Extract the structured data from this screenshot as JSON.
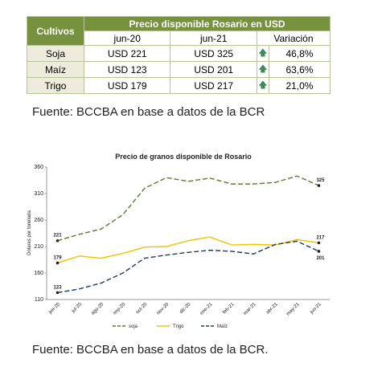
{
  "table": {
    "header": {
      "row_label": "Cultivos",
      "group": "Precio disponible Rosario en USD",
      "columns": [
        "jun-20",
        "jun-21",
        "Variación"
      ]
    },
    "rows": [
      [
        "Soja",
        "USD 221",
        "USD 325",
        "46,8%"
      ],
      [
        "Maíz",
        "USD 123",
        "USD 201",
        "63,6%"
      ],
      [
        "Trigo",
        "USD 179",
        "USD 217",
        "21,0%"
      ]
    ]
  },
  "source_1": "Fuente: BCCBA en base a datos de la BCR",
  "chart_data": {
    "type": "line",
    "title": "Precio de granos disponible de Rosario",
    "y_label": "Dolares por tonelada",
    "categories": [
      "jun-20",
      "jul-20",
      "ago-20",
      "sep-20",
      "oct-20",
      "nov-20",
      "dic-20",
      "ene-21",
      "feb-21",
      "mar-21",
      "abr-21",
      "may-21",
      "jun-21"
    ],
    "series": [
      {
        "name": "soja",
        "color": "#5f7a2e",
        "dashed": true,
        "values": [
          221,
          233,
          243,
          270,
          320,
          340,
          333,
          339,
          328,
          328,
          331,
          343,
          325
        ]
      },
      {
        "name": "Trigo",
        "color": "#f2c200",
        "dashed": false,
        "values": [
          179,
          192,
          188,
          197,
          209,
          210,
          221,
          228,
          213,
          214,
          213,
          223,
          217
        ]
      },
      {
        "name": "Maíz",
        "color": "#1f3864",
        "dashed": true,
        "values": [
          123,
          130,
          141,
          160,
          188,
          194,
          199,
          203,
          201,
          196,
          214,
          220,
          201
        ]
      }
    ],
    "ylim": [
      110,
      360
    ],
    "yticks": [
      110,
      160,
      210,
      260,
      310,
      360
    ],
    "grid": false
  },
  "source_2": "Fuente: BCCBA en base a datos de la BCR."
}
